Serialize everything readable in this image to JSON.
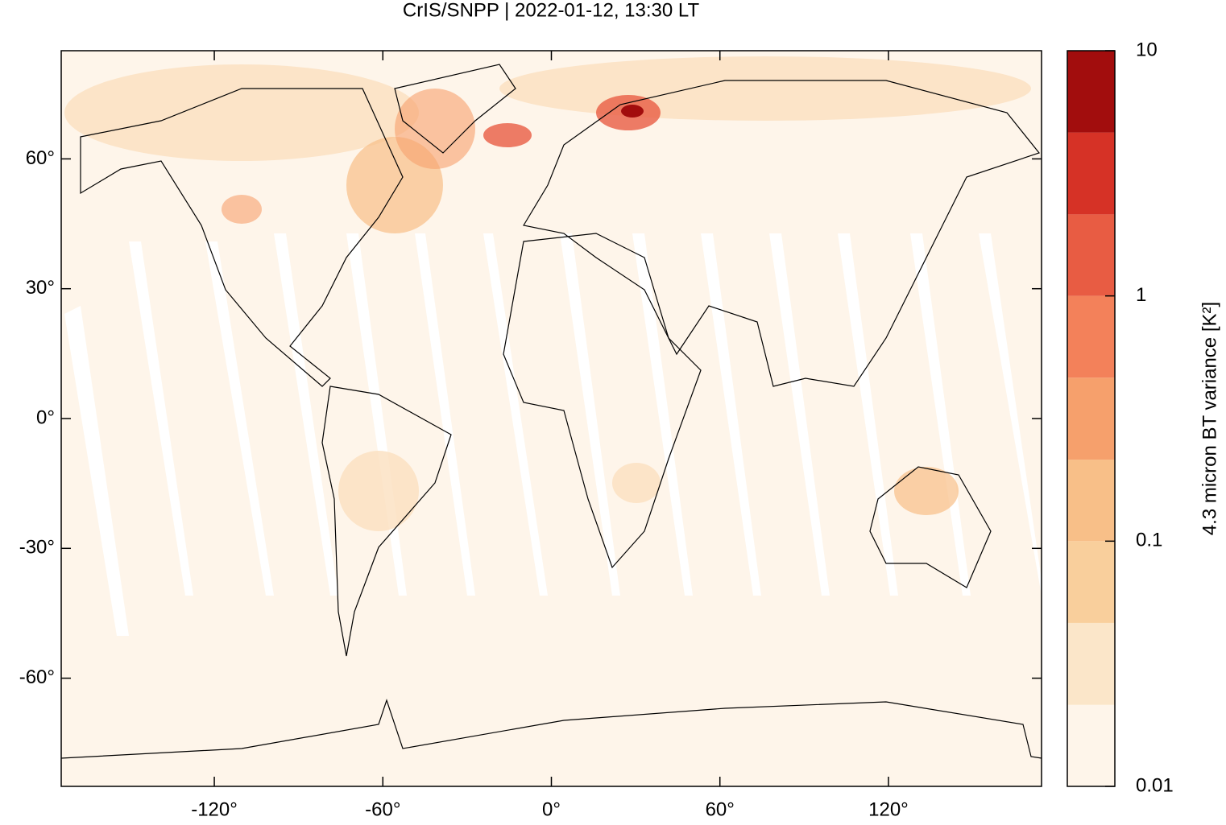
{
  "chart_data": {
    "type": "map",
    "title": "CrIS/SNPP | 2022-01-12, 13:30 LT",
    "xlim": [
      -174.5,
      174.5
    ],
    "ylim": [
      -85,
      85
    ],
    "xticks": [
      {
        "value": -120,
        "label": "-120°"
      },
      {
        "value": -60,
        "label": "-60°"
      },
      {
        "value": 0,
        "label": "0°"
      },
      {
        "value": 60,
        "label": "60°"
      },
      {
        "value": 120,
        "label": "120°"
      }
    ],
    "yticks": [
      {
        "value": -60,
        "label": "-60°"
      },
      {
        "value": -30,
        "label": "-30°"
      },
      {
        "value": 0,
        "label": "0°"
      },
      {
        "value": 30,
        "label": "30°"
      },
      {
        "value": 60,
        "label": "60°"
      }
    ],
    "colorbar": {
      "label": "4.3 micron BT variance [K²]",
      "log": true,
      "lim": [
        0.01,
        10
      ],
      "ticks": [
        0.01,
        0.1,
        1,
        10
      ],
      "levels": [
        0.01,
        0.0215,
        0.0464,
        0.1,
        0.215,
        0.464,
        1,
        2.15,
        4.64,
        10
      ],
      "colors": [
        "#fef5ea",
        "#fbe6c9",
        "#f9cf9c",
        "#f8bf88",
        "#f6a06c",
        "#f3815a",
        "#e85c43",
        "#d63226",
        "#a20d0d"
      ]
    }
  }
}
